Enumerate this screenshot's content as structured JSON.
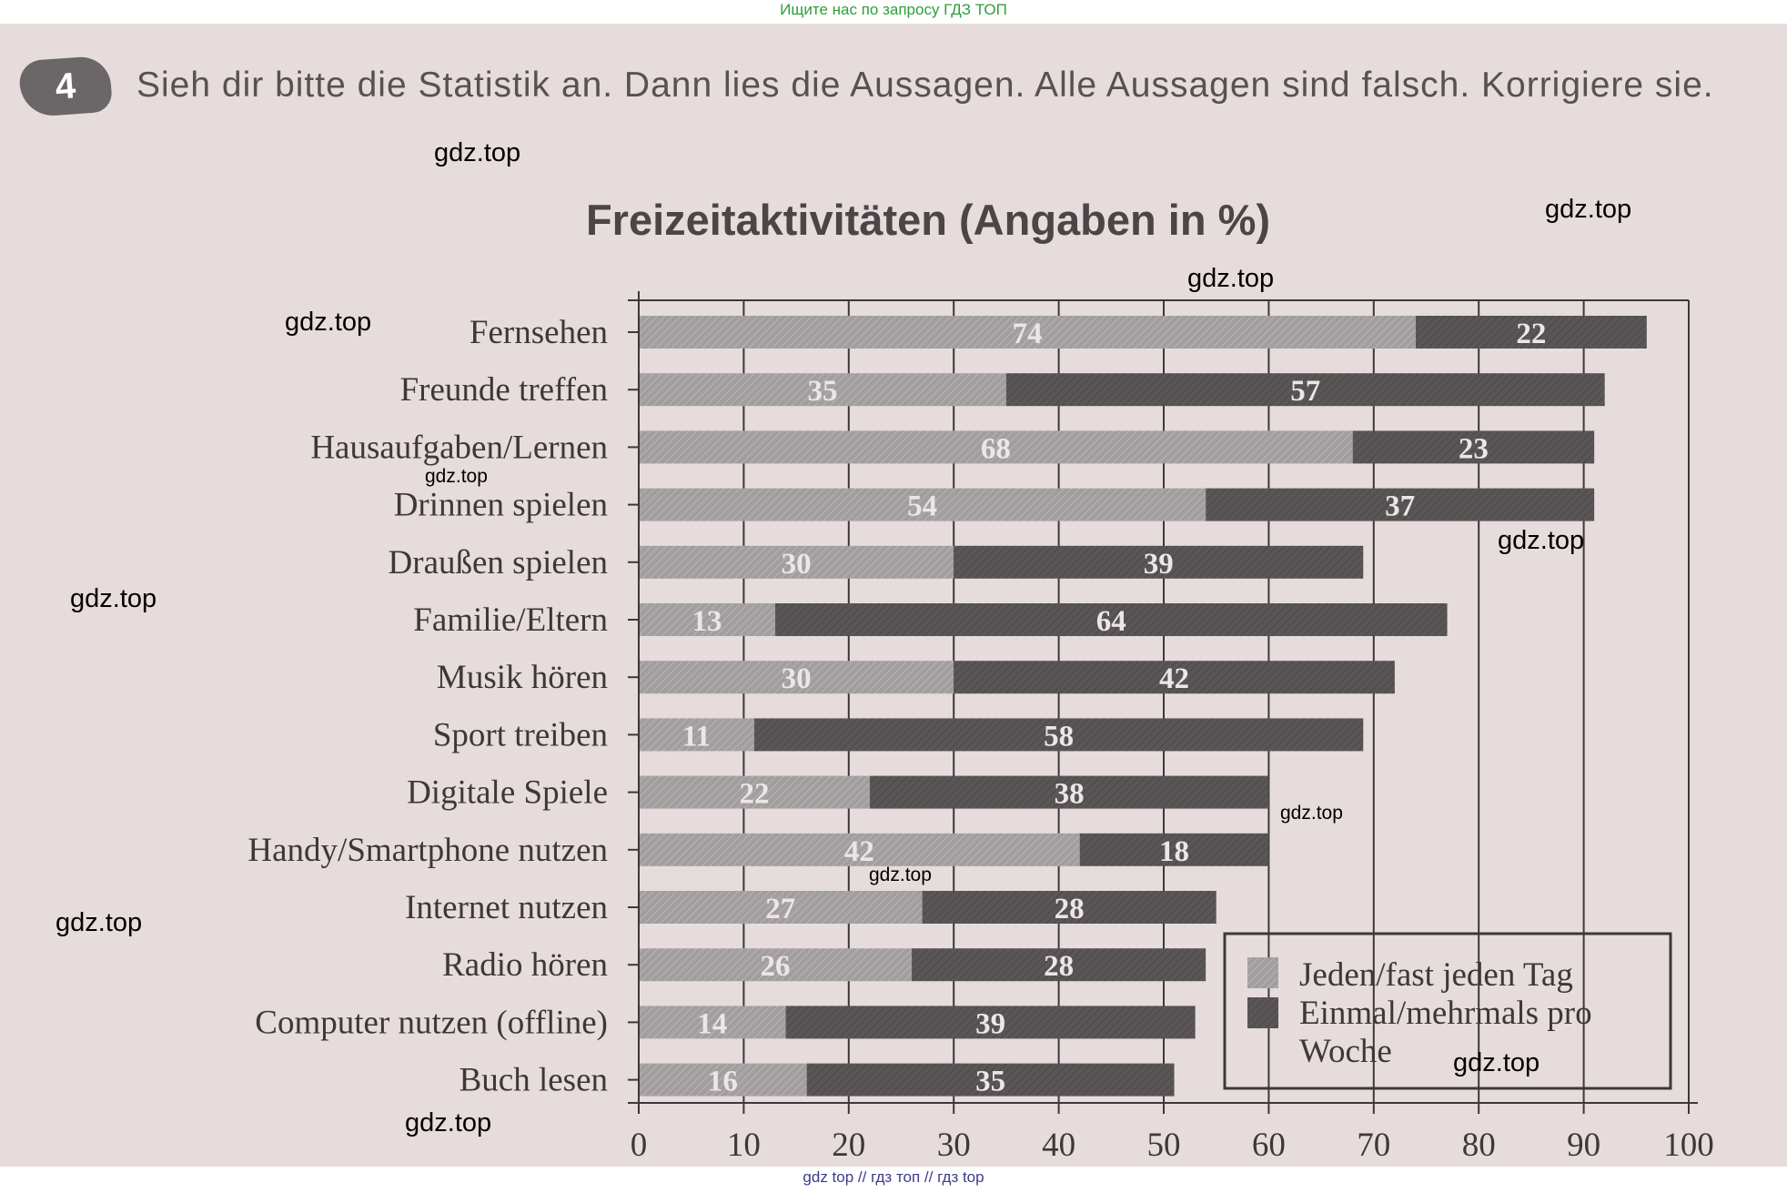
{
  "top_banner": "Ищите нас по запросу ГДЗ ТОП",
  "task": {
    "number": "4",
    "text": "Sieh dir bitte die Statistik an. Dann lies die Aussagen. Alle Aussagen sind falsch. Korrigiere sie."
  },
  "colors": {
    "daily": "#a29e9f",
    "weekly": "#5a5657",
    "page": "#e6dcdc"
  },
  "chart_data": {
    "type": "bar",
    "orientation": "horizontal",
    "stacked": true,
    "title": "Freizeitaktivitäten (Angaben in %)",
    "categories": [
      "Fernsehen",
      "Freunde treffen",
      "Hausaufgaben/Lernen",
      "Drinnen spielen",
      "Draußen spielen",
      "Familie/Eltern",
      "Musik hören",
      "Sport treiben",
      "Digitale Spiele",
      "Handy/Smartphone nutzen",
      "Internet nutzen",
      "Radio hören",
      "Computer nutzen (offline)",
      "Buch lesen"
    ],
    "series": [
      {
        "name": "Jeden/fast jeden Tag",
        "values": [
          74,
          35,
          68,
          54,
          30,
          13,
          30,
          11,
          22,
          42,
          27,
          26,
          14,
          16
        ]
      },
      {
        "name": "Einmal/mehrmals pro Woche",
        "values": [
          22,
          57,
          23,
          37,
          39,
          64,
          42,
          58,
          38,
          18,
          28,
          28,
          39,
          35
        ]
      }
    ],
    "xlim": [
      0,
      100
    ],
    "xticks": [
      0,
      10,
      20,
      30,
      40,
      50,
      60,
      70,
      80,
      90,
      100
    ],
    "grid": true,
    "legend": {
      "position": "bottom-right",
      "entries": [
        "Jeden/fast jeden Tag",
        "Einmal/mehrmals pro",
        "Woche"
      ]
    }
  },
  "watermarks": [
    "gdz.top",
    "gdz.top",
    "gdz.top",
    "gdz.top",
    "gdz.top",
    "gdz.top",
    "gdz.top",
    "gdz.top",
    "gdz.top",
    "gdz.top",
    "gdz.top",
    "gdz.top"
  ],
  "bottom_banner": "gdz top  //  гдз топ  //  гдз top"
}
